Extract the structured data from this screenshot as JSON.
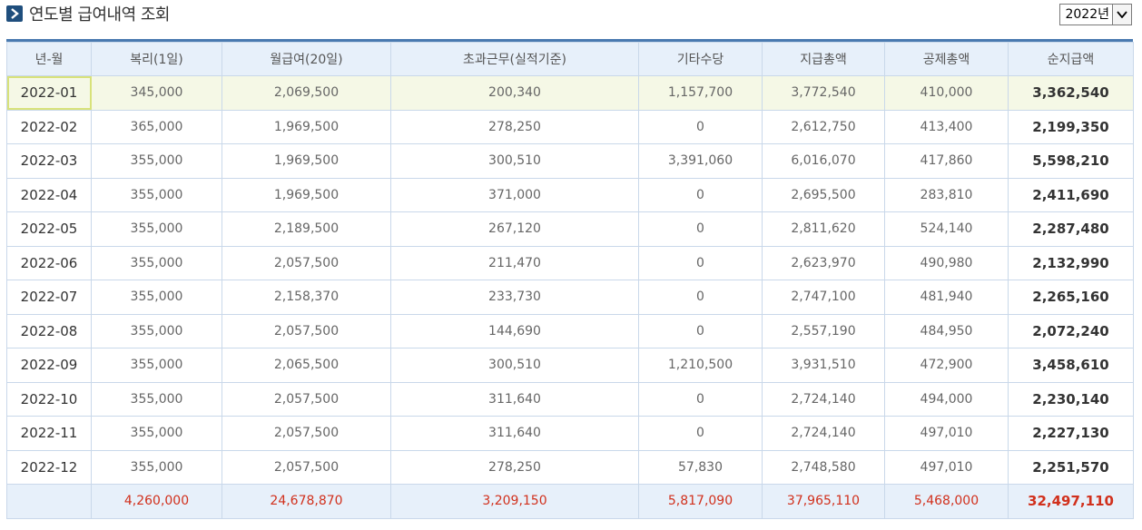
{
  "header": {
    "title": "연도별 급여내역 조회",
    "year_select": "2022년"
  },
  "colors": {
    "header_bg": "#e7f0fa",
    "border": "#c9d8ea",
    "total_text": "#d1301c",
    "selected_row": "#f5f8e6",
    "accent": "#4a7ab0"
  },
  "table": {
    "columns": [
      "년-월",
      "복리(1일)",
      "월급여(20일)",
      "초과근무(실적기준)",
      "기타수당",
      "지급총액",
      "공제총액",
      "순지급액"
    ],
    "rows": [
      [
        "2022-01",
        "345,000",
        "2,069,500",
        "200,340",
        "1,157,700",
        "3,772,540",
        "410,000",
        "3,362,540"
      ],
      [
        "2022-02",
        "365,000",
        "1,969,500",
        "278,250",
        "0",
        "2,612,750",
        "413,400",
        "2,199,350"
      ],
      [
        "2022-03",
        "355,000",
        "1,969,500",
        "300,510",
        "3,391,060",
        "6,016,070",
        "417,860",
        "5,598,210"
      ],
      [
        "2022-04",
        "355,000",
        "1,969,500",
        "371,000",
        "0",
        "2,695,500",
        "283,810",
        "2,411,690"
      ],
      [
        "2022-05",
        "355,000",
        "2,189,500",
        "267,120",
        "0",
        "2,811,620",
        "524,140",
        "2,287,480"
      ],
      [
        "2022-06",
        "355,000",
        "2,057,500",
        "211,470",
        "0",
        "2,623,970",
        "490,980",
        "2,132,990"
      ],
      [
        "2022-07",
        "355,000",
        "2,158,370",
        "233,730",
        "0",
        "2,747,100",
        "481,940",
        "2,265,160"
      ],
      [
        "2022-08",
        "355,000",
        "2,057,500",
        "144,690",
        "0",
        "2,557,190",
        "484,950",
        "2,072,240"
      ],
      [
        "2022-09",
        "355,000",
        "2,065,500",
        "300,510",
        "1,210,500",
        "3,931,510",
        "472,900",
        "3,458,610"
      ],
      [
        "2022-10",
        "355,000",
        "2,057,500",
        "311,640",
        "0",
        "2,724,140",
        "494,000",
        "2,230,140"
      ],
      [
        "2022-11",
        "355,000",
        "2,057,500",
        "311,640",
        "0",
        "2,724,140",
        "497,010",
        "2,227,130"
      ],
      [
        "2022-12",
        "355,000",
        "2,057,500",
        "278,250",
        "57,830",
        "2,748,580",
        "497,010",
        "2,251,570"
      ]
    ],
    "total": [
      "",
      "4,260,000",
      "24,678,870",
      "3,209,150",
      "5,817,090",
      "37,965,110",
      "5,468,000",
      "32,497,110"
    ]
  },
  "icons": {
    "title": "chevron-right-icon",
    "select": "chevron-down-icon"
  }
}
